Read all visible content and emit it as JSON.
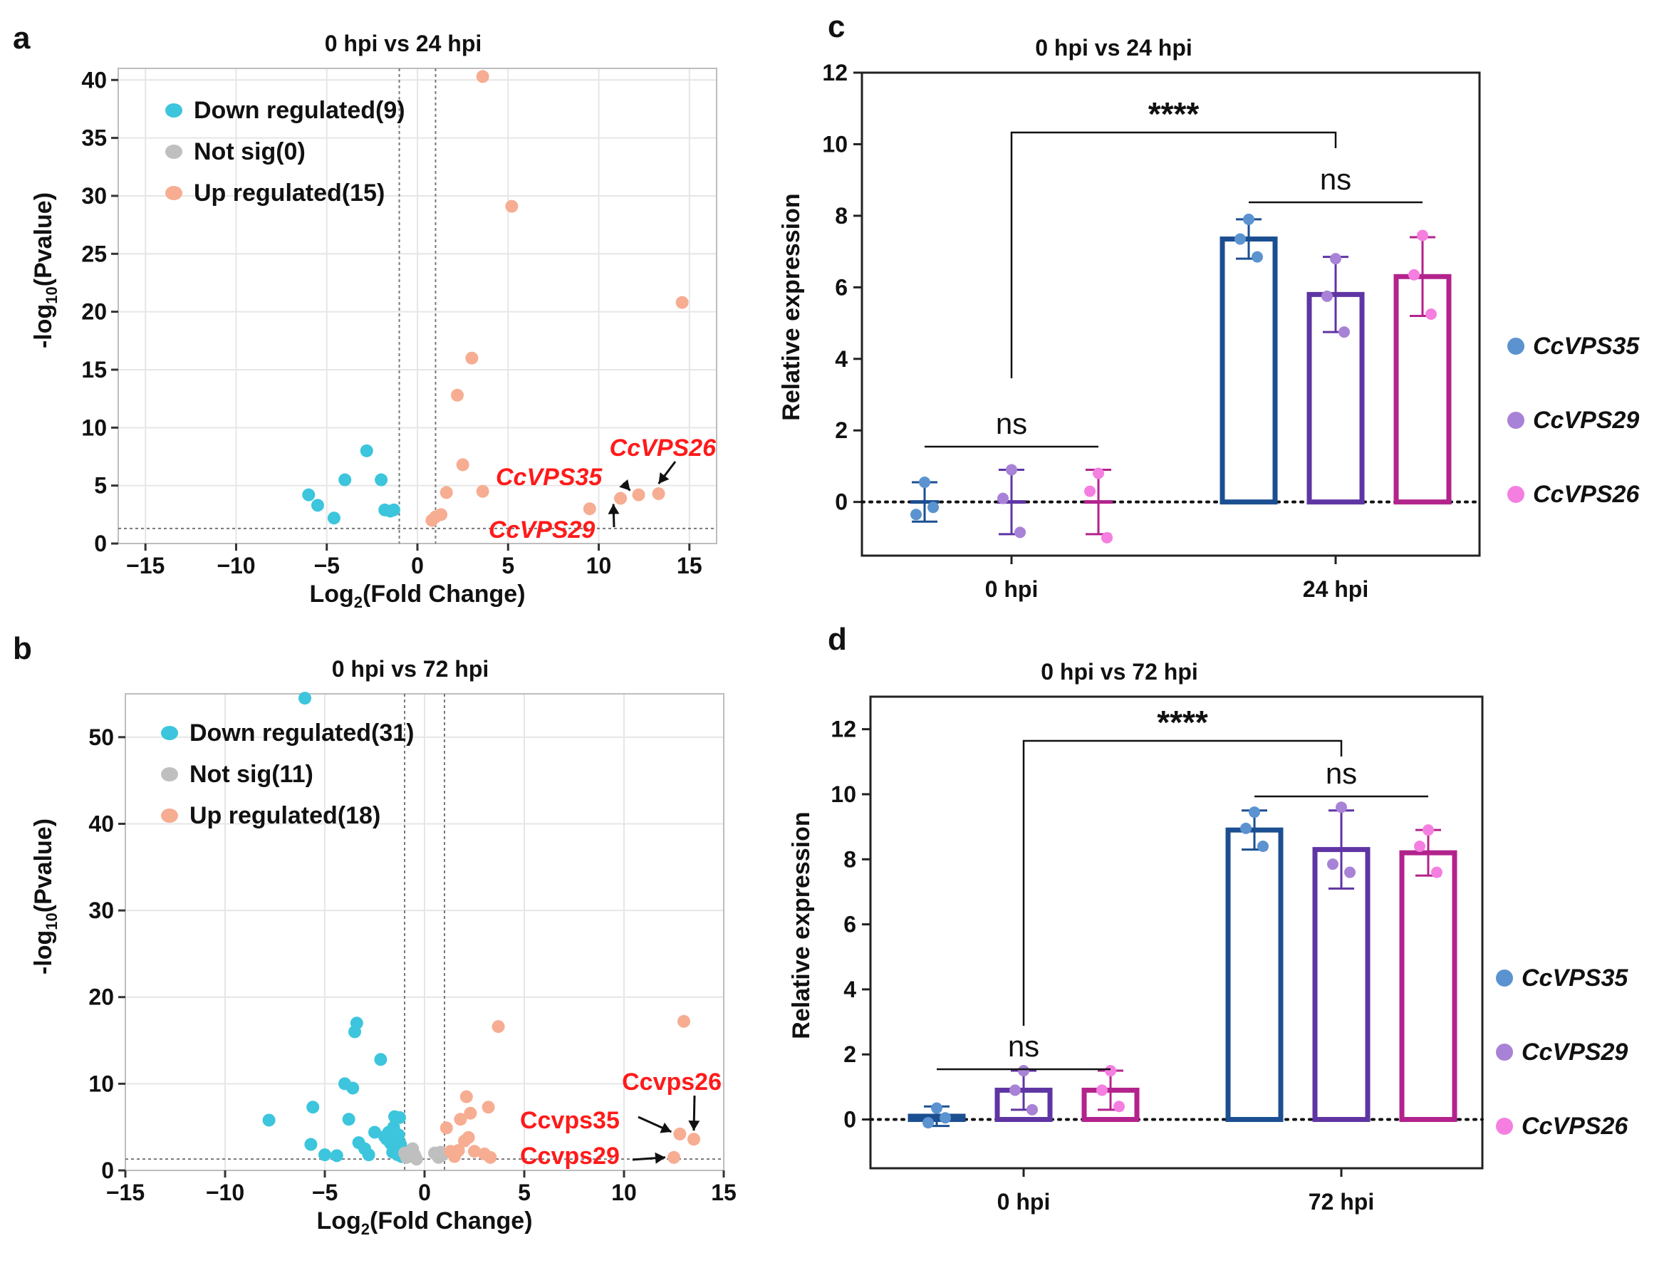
{
  "panels": {
    "a": "a",
    "b": "b",
    "c": "c",
    "d": "d"
  },
  "chart_data": [
    {
      "id": "a",
      "type": "scatter",
      "title": "0 hpi vs 24 hpi",
      "xlabel_main": "Log",
      "xlabel_sub": "2",
      "xlabel_rest": "(Fold Change)",
      "ylabel_main": "-log",
      "ylabel_sub": "10",
      "ylabel_rest": "(Pvalue)",
      "xlim": [
        -16.5,
        16.5
      ],
      "ylim": [
        0,
        41
      ],
      "xticks": [
        -15,
        -10,
        -5,
        0,
        5,
        10,
        15
      ],
      "xtick_labels": [
        "−15",
        "−10",
        "−5",
        "0",
        "5",
        "10",
        "15"
      ],
      "yticks": [
        0,
        5,
        10,
        15,
        20,
        25,
        30,
        35,
        40
      ],
      "vlines": [
        -1,
        1
      ],
      "hline": 1.3,
      "colors": {
        "down": "#3cc5dd",
        "notsig": "#bfbfbf",
        "up": "#f6ad92"
      },
      "legend": [
        {
          "key": "down",
          "label": "Down regulated(9)"
        },
        {
          "key": "notsig",
          "label": "Not sig(0)"
        },
        {
          "key": "up",
          "label": "Up regulated(15)"
        }
      ],
      "series": [
        {
          "name": "Down regulated",
          "key": "down",
          "points": [
            [
              -6,
              4.2
            ],
            [
              -5.5,
              3.3
            ],
            [
              -4.6,
              2.2
            ],
            [
              -4,
              5.5
            ],
            [
              -2.8,
              8
            ],
            [
              -2,
              5.5
            ],
            [
              -1.8,
              2.9
            ],
            [
              -1.5,
              2.8
            ],
            [
              -1.3,
              2.9
            ]
          ]
        },
        {
          "name": "Not sig",
          "key": "notsig",
          "points": []
        },
        {
          "name": "Up regulated",
          "key": "up",
          "points": [
            [
              0.8,
              2
            ],
            [
              1,
              2.3
            ],
            [
              1.3,
              2.5
            ],
            [
              1.6,
              4.4
            ],
            [
              2.2,
              12.8
            ],
            [
              2.5,
              6.8
            ],
            [
              3,
              16
            ],
            [
              3.6,
              4.5
            ],
            [
              3.6,
              40.3
            ],
            [
              5.2,
              29.1
            ],
            [
              9.5,
              3
            ],
            [
              11.2,
              3.9
            ],
            [
              12.2,
              4.2
            ],
            [
              13.3,
              4.3
            ],
            [
              14.6,
              20.8
            ]
          ]
        }
      ],
      "annotations": [
        {
          "label": "CcVPS26",
          "italic": true
        },
        {
          "label": "CcVPS35",
          "italic": true
        },
        {
          "label": "CcVPS29",
          "italic": true
        }
      ]
    },
    {
      "id": "b",
      "type": "scatter",
      "title": "0 hpi vs 72 hpi",
      "xlabel_main": "Log",
      "xlabel_sub": "2",
      "xlabel_rest": "(Fold Change)",
      "ylabel_main": "-log",
      "ylabel_sub": "10",
      "ylabel_rest": "(Pvalue)",
      "xlim": [
        -15,
        15
      ],
      "ylim": [
        0,
        55
      ],
      "xticks": [
        -15,
        -10,
        -5,
        0,
        5,
        10,
        15
      ],
      "xtick_labels": [
        "−15",
        "−10",
        "−5",
        "0",
        "5",
        "10",
        "15"
      ],
      "yticks": [
        0,
        10,
        20,
        30,
        40,
        50
      ],
      "vlines": [
        -1,
        1
      ],
      "hline": 1.3,
      "colors": {
        "down": "#3cc5dd",
        "notsig": "#bfbfbf",
        "up": "#f6ad92"
      },
      "legend": [
        {
          "key": "down",
          "label": "Down regulated(31)"
        },
        {
          "key": "notsig",
          "label": "Not sig(11)"
        },
        {
          "key": "up",
          "label": "Up regulated(18)"
        }
      ],
      "series": [
        {
          "name": "Down regulated",
          "key": "down",
          "points": [
            [
              -7.8,
              5.8
            ],
            [
              -6,
              54.5
            ],
            [
              -5.6,
              7.3
            ],
            [
              -5.7,
              3
            ],
            [
              -5,
              1.8
            ],
            [
              -4.4,
              1.7
            ],
            [
              -4,
              10
            ],
            [
              -3.8,
              5.9
            ],
            [
              -3.6,
              9.5
            ],
            [
              -3.5,
              16
            ],
            [
              -3.4,
              17
            ],
            [
              -3.3,
              3.2
            ],
            [
              -3,
              2.5
            ],
            [
              -2.8,
              1.8
            ],
            [
              -2.5,
              4.4
            ],
            [
              -2.2,
              12.8
            ],
            [
              -2,
              3.9
            ],
            [
              -1.9,
              3.6
            ],
            [
              -1.8,
              4.4
            ],
            [
              -1.7,
              3.1
            ],
            [
              -1.6,
              2.1
            ],
            [
              -1.55,
              5
            ],
            [
              -1.5,
              6.2
            ],
            [
              -1.45,
              2.8
            ],
            [
              -1.4,
              3.5
            ],
            [
              -1.35,
              1.8
            ],
            [
              -1.3,
              4.1
            ],
            [
              -1.3,
              2.3
            ],
            [
              -1.25,
              6.1
            ],
            [
              -1.2,
              3
            ],
            [
              -1.15,
              1.6
            ]
          ]
        },
        {
          "name": "Not sig",
          "key": "notsig",
          "points": [
            [
              -1,
              2
            ],
            [
              -0.9,
              1.5
            ],
            [
              -0.8,
              1.6
            ],
            [
              -0.6,
              2.5
            ],
            [
              -0.5,
              1.8
            ],
            [
              -0.4,
              1.3
            ],
            [
              0.5,
              2
            ],
            [
              0.6,
              1.8
            ],
            [
              0.7,
              1.5
            ],
            [
              0.8,
              2.1
            ],
            [
              0.9,
              1.8
            ]
          ]
        },
        {
          "name": "Up regulated",
          "key": "up",
          "points": [
            [
              1.1,
              4.9
            ],
            [
              1.3,
              2.2
            ],
            [
              1.5,
              1.6
            ],
            [
              1.7,
              2.3
            ],
            [
              1.8,
              5.9
            ],
            [
              2,
              3.4
            ],
            [
              2.1,
              8.5
            ],
            [
              2.2,
              3.8
            ],
            [
              2.3,
              6.6
            ],
            [
              2.5,
              2.2
            ],
            [
              3,
              1.9
            ],
            [
              3.2,
              7.3
            ],
            [
              3.3,
              1.5
            ],
            [
              3.7,
              16.6
            ],
            [
              12.5,
              1.5
            ],
            [
              12.8,
              4.2
            ],
            [
              13,
              17.2
            ],
            [
              13.5,
              3.6
            ]
          ]
        }
      ],
      "annotations": [
        {
          "label": "Ccvps26",
          "italic": false
        },
        {
          "label": "Ccvps35",
          "italic": false
        },
        {
          "label": "Ccvps29",
          "italic": false
        }
      ]
    },
    {
      "id": "c",
      "type": "bar",
      "title": "0 hpi vs 24 hpi",
      "ylabel": "Relative expression",
      "ylim": [
        -1.5,
        12
      ],
      "yticks": [
        0,
        2,
        4,
        6,
        8,
        10,
        12
      ],
      "categories": [
        "0 hpi",
        "24 hpi"
      ],
      "series": [
        {
          "name": "CcVPS35",
          "color": "#1c4f91",
          "dot": "#5b93d0",
          "means": [
            0,
            7.35
          ],
          "err_hi": [
            0.55,
            7.9
          ],
          "err_lo": [
            -0.55,
            6.8
          ],
          "points": [
            [
              0.55,
              -0.35,
              -0.15
            ],
            [
              7.9,
              7.35,
              6.85
            ]
          ]
        },
        {
          "name": "CcVPS29",
          "color": "#5f35a3",
          "dot": "#a882d6",
          "means": [
            0,
            5.8
          ],
          "err_hi": [
            0.9,
            6.85
          ],
          "err_lo": [
            -0.9,
            4.75
          ],
          "points": [
            [
              0.9,
              0.1,
              -0.85
            ],
            [
              6.8,
              5.75,
              4.75
            ]
          ]
        },
        {
          "name": "CcVPS26",
          "color": "#b3238c",
          "dot": "#f57fe0",
          "means": [
            0,
            6.3
          ],
          "err_hi": [
            0.9,
            7.4
          ],
          "err_lo": [
            -0.9,
            5.2
          ],
          "points": [
            [
              0.8,
              0.3,
              -1.0
            ],
            [
              7.45,
              6.35,
              5.25
            ]
          ]
        }
      ],
      "significance": [
        {
          "label": "****"
        },
        {
          "label": "ns"
        },
        {
          "label": "ns"
        }
      ]
    },
    {
      "id": "d",
      "type": "bar",
      "title": "0 hpi vs 72 hpi",
      "ylabel": "Relative expression",
      "ylim": [
        -1.5,
        13
      ],
      "yticks": [
        0,
        2,
        4,
        6,
        8,
        10,
        12
      ],
      "categories": [
        "0 hpi",
        "72 hpi"
      ],
      "series": [
        {
          "name": "CcVPS35",
          "color": "#1c4f91",
          "dot": "#5b93d0",
          "means": [
            0.1,
            8.9
          ],
          "err_hi": [
            0.4,
            9.5
          ],
          "err_lo": [
            -0.2,
            8.3
          ],
          "points": [
            [
              0.35,
              -0.1,
              0.05
            ],
            [
              9.45,
              8.95,
              8.4
            ]
          ]
        },
        {
          "name": "CcVPS29",
          "color": "#5f35a3",
          "dot": "#a882d6",
          "means": [
            0.9,
            8.3
          ],
          "err_hi": [
            1.5,
            9.5
          ],
          "err_lo": [
            0.3,
            7.1
          ],
          "points": [
            [
              1.5,
              0.9,
              0.3
            ],
            [
              9.6,
              7.85,
              7.6
            ]
          ]
        },
        {
          "name": "CcVPS26",
          "color": "#b3238c",
          "dot": "#f57fe0",
          "means": [
            0.9,
            8.2
          ],
          "err_hi": [
            1.5,
            8.9
          ],
          "err_lo": [
            0.3,
            7.5
          ],
          "points": [
            [
              1.5,
              0.9,
              0.4
            ],
            [
              8.9,
              8.4,
              7.6
            ]
          ]
        }
      ],
      "significance": [
        {
          "label": "****"
        },
        {
          "label": "ns"
        },
        {
          "label": "ns"
        }
      ]
    }
  ]
}
